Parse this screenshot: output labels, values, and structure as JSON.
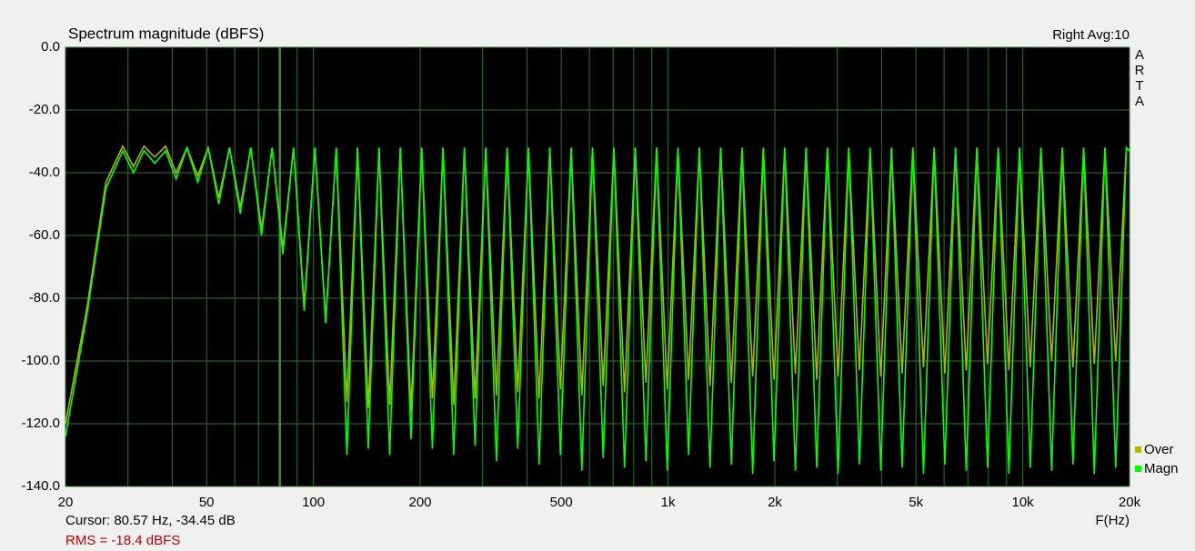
{
  "chart_data": {
    "type": "line",
    "title": "Spectrum magnitude (dBFS)",
    "top_right_label": "Right  Avg:10",
    "brand": [
      "A",
      "R",
      "T",
      "A"
    ],
    "x_label": "F(Hz)",
    "cursor_text": "Cursor: 80.57 Hz, -34.45 dB",
    "rms_text": "RMS =  -18.4 dBFS",
    "cursor_x": 80.57,
    "log_x": true,
    "grid": true,
    "grid_color": "#2f6f2f",
    "background": "#000000",
    "legend": "bottom-right",
    "xlim": [
      20,
      20000
    ],
    "ylim": [
      -140,
      0
    ],
    "xticks": [
      20,
      50,
      100,
      200,
      500,
      {
        "value": 1000,
        "label": "1k"
      },
      {
        "value": 2000,
        "label": "2k"
      },
      {
        "value": 5000,
        "label": "5k"
      },
      {
        "value": 10000,
        "label": "10k"
      },
      {
        "value": 20000,
        "label": "20k"
      }
    ],
    "x_minor_grid": [
      30,
      40,
      60,
      70,
      80,
      90,
      300,
      400,
      600,
      700,
      800,
      900,
      3000,
      4000,
      6000,
      7000,
      8000,
      9000
    ],
    "yticks": [
      {
        "value": 0,
        "label": "0.0"
      },
      {
        "value": -20,
        "label": "-20.0"
      },
      {
        "value": -40,
        "label": "-40.0"
      },
      {
        "value": -60,
        "label": "-60.0"
      },
      {
        "value": -80,
        "label": "-80.0"
      },
      {
        "value": -100,
        "label": "-100.0"
      },
      {
        "value": -120,
        "label": "-120.0"
      },
      {
        "value": -140,
        "label": "-140.0"
      }
    ],
    "x": [
      20,
      23,
      26,
      29,
      31.1,
      33.3,
      35.7,
      38.3,
      41,
      44,
      47.2,
      50.5,
      54.1,
      58,
      62.2,
      66.6,
      71.4,
      76.5,
      82,
      87.9,
      94.2,
      101,
      108.3,
      116,
      124.3,
      133.2,
      142.8,
      153.1,
      164.1,
      175.8,
      188.4,
      202,
      216.5,
      232,
      248.7,
      266.5,
      285.6,
      306.1,
      328.1,
      351.7,
      376.9,
      404,
      433,
      464,
      497.3,
      533,
      571.3,
      612.3,
      656.3,
      703.3,
      753.8,
      808,
      866,
      928,
      994.6,
      1066,
      1142.5,
      1225,
      1313,
      1407,
      1508,
      1616,
      1732,
      1856,
      1989,
      2132,
      2285,
      2449,
      2625,
      2813,
      3015,
      3232,
      3464,
      3712,
      3979,
      4264,
      4570,
      4898,
      5250,
      5626,
      6030,
      6463,
      6927,
      7424,
      7957,
      8528,
      9140,
      9796,
      10499,
      11253,
      12061,
      12926,
      13854,
      14848,
      15914,
      17056,
      18281,
      19592,
      20000
    ],
    "series": [
      {
        "name": "Over",
        "color": "#b4b400",
        "values": [
          -120,
          -83,
          -43,
          -31.5,
          -38,
          -31.5,
          -35,
          -31.5,
          -40,
          -32,
          -41,
          -32,
          -48,
          -32,
          -51,
          -32,
          -58,
          -32,
          -64,
          -32,
          -82,
          -32,
          -87,
          -32,
          -113,
          -32,
          -115,
          -32,
          -114,
          -32,
          -116,
          -32,
          -112,
          -32,
          -114,
          -32,
          -112,
          -32,
          -111,
          -32,
          -110,
          -32,
          -112,
          -32,
          -109,
          -32,
          -111,
          -32,
          -108,
          -32,
          -110,
          -32,
          -107,
          -32,
          -109,
          -32,
          -106,
          -32,
          -108,
          -32,
          -107,
          -32,
          -105,
          -32,
          -106,
          -32,
          -104,
          -32,
          -106,
          -32,
          -105,
          -32,
          -103,
          -32,
          -105,
          -32,
          -104,
          -32,
          -102,
          -32,
          -104,
          -32,
          -103,
          -32,
          -101,
          -32,
          -103,
          -32,
          -102,
          -32,
          -100,
          -32,
          -102,
          -32,
          -101,
          -32,
          -100,
          -32,
          -33
        ]
      },
      {
        "name": "Magn",
        "color": "#00ff00",
        "values": [
          -124,
          -85,
          -45,
          -33,
          -40,
          -33,
          -37,
          -33,
          -42,
          -32,
          -43,
          -32,
          -50,
          -32,
          -53,
          -32,
          -60,
          -32,
          -66,
          -32,
          -84,
          -32,
          -88,
          -32,
          -130,
          -32,
          -128,
          -32,
          -130,
          -32,
          -125,
          -32,
          -128,
          -32,
          -130,
          -32,
          -127,
          -32,
          -132,
          -32,
          -128,
          -32,
          -133,
          -32,
          -130,
          -32,
          -135,
          -32,
          -131,
          -32,
          -134,
          -32,
          -132,
          -32,
          -135,
          -32,
          -130,
          -32,
          -134,
          -32,
          -133,
          -32,
          -136,
          -32,
          -132,
          -32,
          -135,
          -32,
          -134,
          -32,
          -136,
          -32,
          -133,
          -32,
          -135,
          -32,
          -134,
          -32,
          -136,
          -32,
          -133,
          -32,
          -135,
          -32,
          -134,
          -32,
          -136,
          -32,
          -134,
          -32,
          -135,
          -32,
          -133,
          -32,
          -136,
          -32,
          -134,
          -32,
          -33
        ]
      }
    ]
  }
}
